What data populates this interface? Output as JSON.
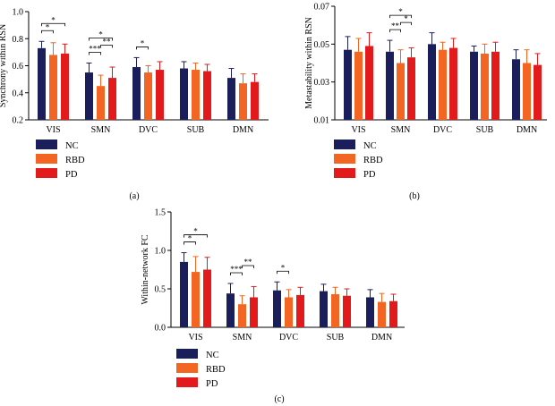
{
  "figure": {
    "legend_labels": [
      "NC",
      "RBD",
      "PD"
    ],
    "series_colors": [
      "#1a1f5c",
      "#f26522",
      "#e31a1c"
    ],
    "axis_color": "#000000",
    "panels": [
      "(a)",
      "(b)",
      "(c)"
    ]
  },
  "chart_data": [
    {
      "type": "bar",
      "panel_label": "(a)",
      "ylabel": "Synchrony within RSN",
      "xlabel": "",
      "categories": [
        "VIS",
        "SMN",
        "DVC",
        "SUB",
        "DMN"
      ],
      "ylim": [
        0.2,
        1.0
      ],
      "yticks": [
        0.2,
        0.4,
        0.6,
        0.8,
        1.0
      ],
      "ytick_labels": [
        "0.2",
        "0.4",
        "0.6",
        "0.8",
        "1.0"
      ],
      "series": [
        {
          "name": "NC",
          "values": [
            0.73,
            0.55,
            0.59,
            0.58,
            0.51
          ],
          "errors": [
            0.05,
            0.07,
            0.07,
            0.05,
            0.07
          ]
        },
        {
          "name": "RBD",
          "values": [
            0.68,
            0.45,
            0.55,
            0.57,
            0.47
          ],
          "errors": [
            0.09,
            0.08,
            0.05,
            0.05,
            0.07
          ]
        },
        {
          "name": "PD",
          "values": [
            0.69,
            0.51,
            0.57,
            0.56,
            0.48
          ],
          "errors": [
            0.07,
            0.08,
            0.06,
            0.05,
            0.06
          ]
        }
      ],
      "annotations": [
        {
          "category": 0,
          "from": 0,
          "to": 1,
          "level": 1,
          "label": "*"
        },
        {
          "category": 0,
          "from": 0,
          "to": 2,
          "level": 2,
          "label": "*"
        },
        {
          "category": 1,
          "from": 0,
          "to": 1,
          "level": 1,
          "label": "***"
        },
        {
          "category": 1,
          "from": 1,
          "to": 2,
          "level": 2,
          "label": "**"
        },
        {
          "category": 1,
          "from": 0,
          "to": 2,
          "level": 3,
          "label": "*"
        },
        {
          "category": 2,
          "from": 0,
          "to": 1,
          "level": 1,
          "label": "*"
        }
      ]
    },
    {
      "type": "bar",
      "panel_label": "(b)",
      "ylabel": "Metastability within RSN",
      "xlabel": "",
      "categories": [
        "VIS",
        "SMN",
        "DVC",
        "SUB",
        "DMN"
      ],
      "ylim": [
        0.01,
        0.07
      ],
      "yticks": [
        0.01,
        0.03,
        0.05,
        0.07
      ],
      "ytick_labels": [
        "0.01",
        "0.03",
        "0.05",
        "0.07"
      ],
      "series": [
        {
          "name": "NC",
          "values": [
            0.047,
            0.046,
            0.05,
            0.046,
            0.042
          ],
          "errors": [
            0.007,
            0.006,
            0.006,
            0.003,
            0.005
          ]
        },
        {
          "name": "RBD",
          "values": [
            0.046,
            0.04,
            0.047,
            0.045,
            0.04
          ],
          "errors": [
            0.007,
            0.007,
            0.004,
            0.005,
            0.007
          ]
        },
        {
          "name": "PD",
          "values": [
            0.049,
            0.043,
            0.048,
            0.046,
            0.039
          ],
          "errors": [
            0.007,
            0.005,
            0.005,
            0.005,
            0.006
          ]
        }
      ],
      "annotations": [
        {
          "category": 1,
          "from": 0,
          "to": 1,
          "level": 1,
          "label": "**"
        },
        {
          "category": 1,
          "from": 1,
          "to": 2,
          "level": 2,
          "label": "*"
        },
        {
          "category": 1,
          "from": 0,
          "to": 2,
          "level": 3,
          "label": "*"
        }
      ]
    },
    {
      "type": "bar",
      "panel_label": "(c)",
      "ylabel": "Within-network FC",
      "xlabel": "",
      "categories": [
        "VIS",
        "SMN",
        "DVC",
        "SUB",
        "DMN"
      ],
      "ylim": [
        0.0,
        1.5
      ],
      "yticks": [
        0.0,
        0.5,
        1.0,
        1.5
      ],
      "ytick_labels": [
        "0.0",
        "0.5",
        "1.0",
        "1.5"
      ],
      "series": [
        {
          "name": "NC",
          "values": [
            0.85,
            0.44,
            0.48,
            0.47,
            0.39
          ],
          "errors": [
            0.12,
            0.13,
            0.11,
            0.09,
            0.1
          ]
        },
        {
          "name": "RBD",
          "values": [
            0.72,
            0.3,
            0.39,
            0.43,
            0.33
          ],
          "errors": [
            0.2,
            0.11,
            0.1,
            0.09,
            0.11
          ]
        },
        {
          "name": "PD",
          "values": [
            0.75,
            0.39,
            0.42,
            0.41,
            0.34
          ],
          "errors": [
            0.16,
            0.14,
            0.1,
            0.09,
            0.09
          ]
        }
      ],
      "annotations": [
        {
          "category": 0,
          "from": 0,
          "to": 1,
          "level": 1,
          "label": "*"
        },
        {
          "category": 0,
          "from": 0,
          "to": 2,
          "level": 2,
          "label": "*"
        },
        {
          "category": 1,
          "from": 0,
          "to": 1,
          "level": 1,
          "label": "***"
        },
        {
          "category": 1,
          "from": 1,
          "to": 2,
          "level": 2,
          "label": "**"
        },
        {
          "category": 2,
          "from": 0,
          "to": 1,
          "level": 1,
          "label": "*"
        }
      ]
    }
  ]
}
